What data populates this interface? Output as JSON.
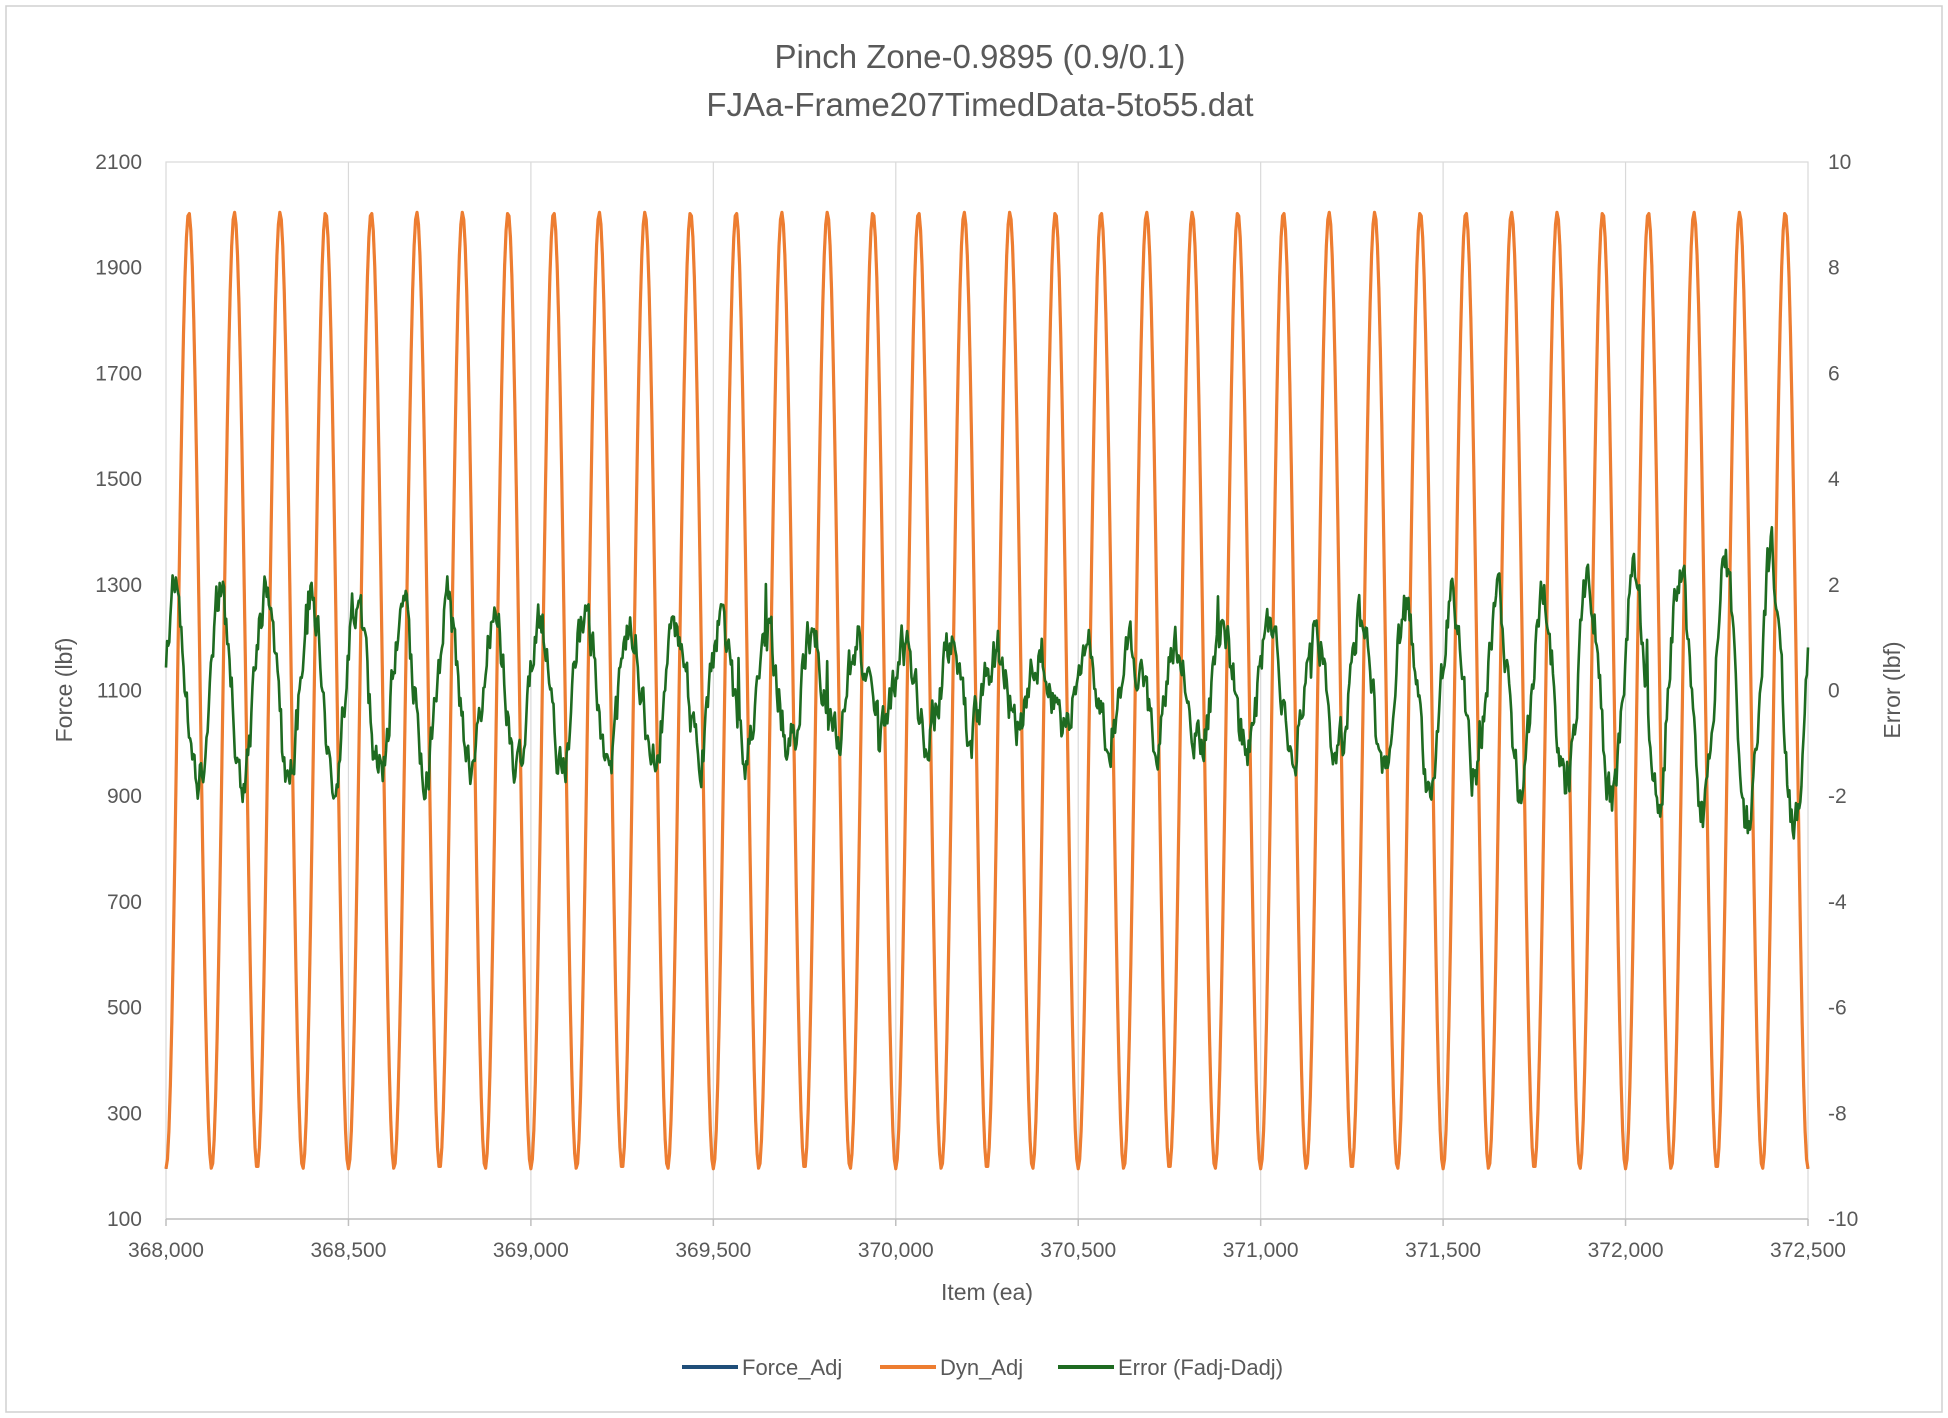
{
  "chart_data": {
    "type": "line",
    "title": "Pinch Zone-0.9895 (0.9/0.1)",
    "subtitle": "FJAa-Frame207TimedData-5to55.dat",
    "xlabel": "Item (ea)",
    "ylabel": "Force (lbf)",
    "y2label": "Error (lbf)",
    "xlim": [
      368000,
      372500
    ],
    "ylim": [
      100,
      2100
    ],
    "y2lim": [
      -10,
      10
    ],
    "x_ticks": [
      368000,
      368500,
      369000,
      369500,
      370000,
      370500,
      371000,
      371500,
      372000,
      372500
    ],
    "x_tick_labels": [
      "368,000",
      "368,500",
      "369,000",
      "369,500",
      "370,000",
      "370,500",
      "371,000",
      "371,500",
      "372,000",
      "372,500"
    ],
    "y_ticks": [
      100,
      300,
      500,
      700,
      900,
      1100,
      1300,
      1500,
      1700,
      1900,
      2100
    ],
    "y_tick_labels": [
      "100",
      "300",
      "500",
      "700",
      "900",
      "1100",
      "1300",
      "1500",
      "1700",
      "1900",
      "2100"
    ],
    "y2_ticks": [
      -10,
      -8,
      -6,
      -4,
      -2,
      0,
      2,
      4,
      6,
      8,
      10
    ],
    "y2_tick_labels": [
      "-10",
      "-8",
      "-6",
      "-4",
      "-2",
      "0",
      "2",
      "4",
      "6",
      "8",
      "10"
    ],
    "grid": {
      "x_major": true,
      "y_major": false
    },
    "legend": {
      "position": "bottom"
    },
    "oscillation": {
      "period": 125.0,
      "phase_x": 368000,
      "mean": 1100,
      "amplitude": 905,
      "x_step": 4
    },
    "series": [
      {
        "name": "Force_Adj",
        "axis": "left",
        "color": "#1f4e79",
        "description_values": "sinusoid between ~195 and ~2005 lbf, period ~125 items (overlaid by Dyn_Adj)"
      },
      {
        "name": "Dyn_Adj",
        "axis": "left",
        "color": "#ed7d31",
        "description_values": "sinusoid between ~195 and ~2005 lbf, period ~125 items"
      },
      {
        "name": "Error (Fadj-Dadj)",
        "axis": "right",
        "color": "#1e6b21",
        "envelope": {
          "x": [
            368000,
            368500,
            369000,
            369500,
            370000,
            370500,
            371000,
            371500,
            372000,
            372500
          ],
          "amplitude": [
            1.8,
            1.7,
            1.5,
            1.2,
            0.8,
            0.7,
            1.0,
            1.6,
            2.1,
            2.6
          ]
        },
        "noise_amplitude": 0.55
      }
    ]
  }
}
